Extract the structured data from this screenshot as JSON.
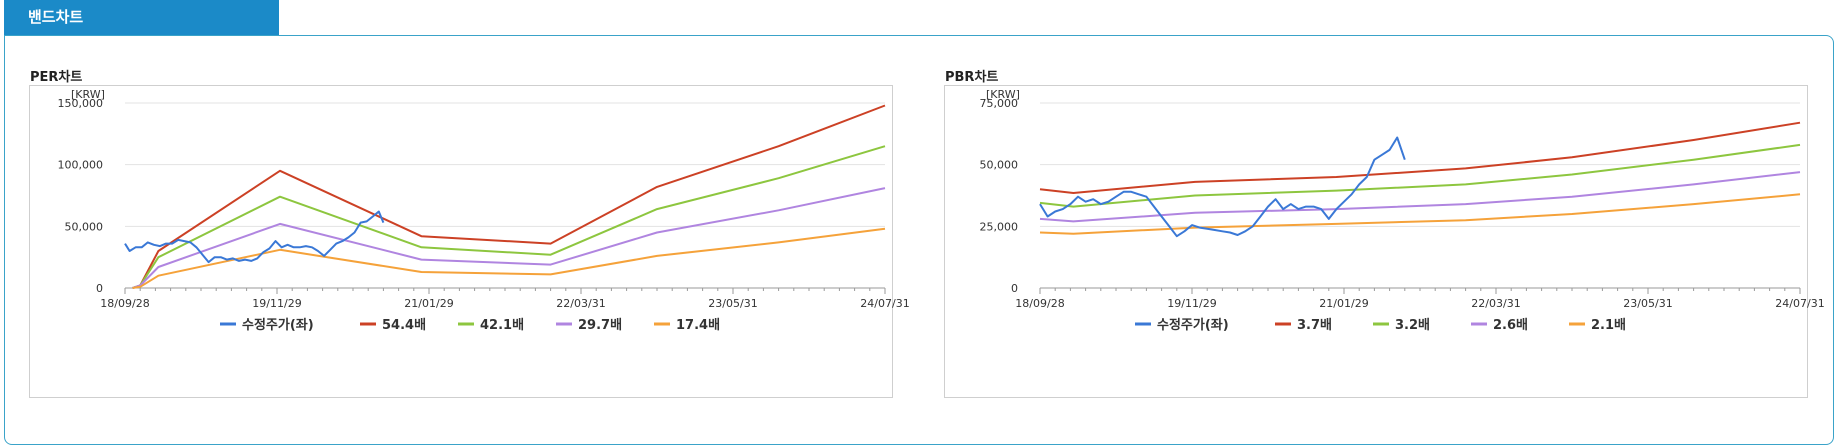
{
  "tab": {
    "label": "밴드차트"
  },
  "charts": [
    {
      "title": "PER차트",
      "chart_data": {
        "type": "line",
        "unit": "[KRW]",
        "x_ticks": [
          "18/09/28",
          "19/11/29",
          "21/01/29",
          "22/03/31",
          "23/05/31",
          "24/07/31"
        ],
        "ylim": [
          0,
          150000
        ],
        "y_ticks": [
          0,
          50000,
          100000,
          150000
        ],
        "y_tick_labels": [
          "0",
          "50,000",
          "100,000",
          "150,000"
        ],
        "grid": true,
        "legend_position": "bottom",
        "series": [
          {
            "name": "수정주가(좌)",
            "color": "#3a78d6",
            "points": [
              [
                0,
                36000
              ],
              [
                0.3,
                30000
              ],
              [
                0.7,
                33000
              ],
              [
                1.1,
                33000
              ],
              [
                1.5,
                37000
              ],
              [
                1.9,
                35000
              ],
              [
                2.3,
                34000
              ],
              [
                2.7,
                36000
              ],
              [
                3.1,
                36000
              ],
              [
                3.5,
                39000
              ],
              [
                3.9,
                38000
              ],
              [
                4.3,
                37000
              ],
              [
                4.7,
                33000
              ],
              [
                5.1,
                27000
              ],
              [
                5.5,
                21000
              ],
              [
                5.9,
                25000
              ],
              [
                6.3,
                25000
              ],
              [
                6.7,
                23000
              ],
              [
                7.1,
                24000
              ],
              [
                7.5,
                22000
              ],
              [
                7.9,
                23000
              ],
              [
                8.3,
                22000
              ],
              [
                8.7,
                24000
              ],
              [
                9.1,
                29000
              ],
              [
                9.5,
                32000
              ],
              [
                9.9,
                38000
              ],
              [
                10.3,
                33000
              ],
              [
                10.7,
                35000
              ],
              [
                11.1,
                33000
              ],
              [
                11.5,
                33000
              ],
              [
                11.9,
                34000
              ],
              [
                12.3,
                33000
              ],
              [
                12.7,
                30000
              ],
              [
                13.1,
                26000
              ],
              [
                13.5,
                31000
              ],
              [
                13.9,
                36000
              ],
              [
                14.3,
                38000
              ],
              [
                14.7,
                41000
              ],
              [
                15.1,
                45000
              ],
              [
                15.5,
                53000
              ],
              [
                15.9,
                54000
              ],
              [
                16.3,
                58000
              ],
              [
                16.7,
                62000
              ],
              [
                17.0,
                53000
              ]
            ]
          },
          {
            "name": "54.4배",
            "color": "#cc4125",
            "points": [
              [
                0.5,
                0
              ],
              [
                1.0,
                2000
              ],
              [
                2.2,
                30000
              ],
              [
                10.2,
                95000
              ],
              [
                19.5,
                42000
              ],
              [
                28.0,
                36000
              ],
              [
                35.0,
                82000
              ],
              [
                43.0,
                115000
              ],
              [
                50.0,
                148000
              ]
            ]
          },
          {
            "name": "42.1배",
            "color": "#8dc63f",
            "points": [
              [
                0.5,
                0
              ],
              [
                1.0,
                2000
              ],
              [
                2.2,
                25000
              ],
              [
                10.2,
                74000
              ],
              [
                19.5,
                33000
              ],
              [
                28.0,
                27000
              ],
              [
                35.0,
                64000
              ],
              [
                43.0,
                89000
              ],
              [
                50.0,
                115000
              ]
            ]
          },
          {
            "name": "29.7배",
            "color": "#b085e0",
            "points": [
              [
                0.5,
                0
              ],
              [
                1.0,
                2000
              ],
              [
                2.2,
                17000
              ],
              [
                10.2,
                52000
              ],
              [
                19.5,
                23000
              ],
              [
                28.0,
                19000
              ],
              [
                35.0,
                45000
              ],
              [
                43.0,
                63000
              ],
              [
                50.0,
                81000
              ]
            ]
          },
          {
            "name": "17.4배",
            "color": "#f5a23a",
            "points": [
              [
                0.5,
                0
              ],
              [
                1.0,
                1000
              ],
              [
                2.2,
                10000
              ],
              [
                10.2,
                31000
              ],
              [
                19.5,
                13000
              ],
              [
                28.0,
                11000
              ],
              [
                35.0,
                26000
              ],
              [
                43.0,
                37000
              ],
              [
                50.0,
                48000
              ]
            ]
          }
        ]
      }
    },
    {
      "title": "PBR차트",
      "chart_data": {
        "type": "line",
        "unit": "[KRW]",
        "x_ticks": [
          "18/09/28",
          "19/11/29",
          "21/01/29",
          "22/03/31",
          "23/05/31",
          "24/07/31"
        ],
        "ylim": [
          0,
          75000
        ],
        "y_ticks": [
          0,
          25000,
          50000,
          75000
        ],
        "y_tick_labels": [
          "0",
          "25,000",
          "50,000",
          "75,000"
        ],
        "grid": true,
        "legend_position": "bottom",
        "series": [
          {
            "name": "수정주가(좌)",
            "color": "#3a78d6",
            "points": [
              [
                0,
                34000
              ],
              [
                0.5,
                29000
              ],
              [
                1.0,
                31000
              ],
              [
                1.5,
                32000
              ],
              [
                2.0,
                34000
              ],
              [
                2.5,
                37000
              ],
              [
                3.0,
                35000
              ],
              [
                3.5,
                36000
              ],
              [
                4.0,
                34000
              ],
              [
                4.5,
                35000
              ],
              [
                5.0,
                37000
              ],
              [
                5.5,
                39000
              ],
              [
                6.0,
                39000
              ],
              [
                6.5,
                38000
              ],
              [
                7.0,
                37000
              ],
              [
                7.5,
                33000
              ],
              [
                8.0,
                29000
              ],
              [
                8.5,
                25000
              ],
              [
                9.0,
                21000
              ],
              [
                9.5,
                23000
              ],
              [
                10.0,
                25500
              ],
              [
                10.5,
                24500
              ],
              [
                11.0,
                24000
              ],
              [
                11.5,
                23500
              ],
              [
                12.0,
                23000
              ],
              [
                12.5,
                22500
              ],
              [
                13.0,
                21500
              ],
              [
                13.5,
                23000
              ],
              [
                14.0,
                25000
              ],
              [
                14.5,
                29000
              ],
              [
                15.0,
                33000
              ],
              [
                15.5,
                36000
              ],
              [
                16.0,
                32000
              ],
              [
                16.5,
                34000
              ],
              [
                17.0,
                32000
              ],
              [
                17.5,
                33000
              ],
              [
                18.0,
                33000
              ],
              [
                18.5,
                32000
              ],
              [
                19.0,
                28000
              ],
              [
                19.5,
                32000
              ],
              [
                20.0,
                35000
              ],
              [
                20.5,
                38000
              ],
              [
                21.0,
                42000
              ],
              [
                21.5,
                45000
              ],
              [
                22.0,
                52000
              ],
              [
                22.5,
                54000
              ],
              [
                23.0,
                56000
              ],
              [
                23.5,
                61000
              ],
              [
                24.0,
                52000
              ]
            ]
          },
          {
            "name": "3.7배",
            "color": "#cc4125",
            "points": [
              [
                0,
                40000
              ],
              [
                2.2,
                38500
              ],
              [
                10.2,
                43000
              ],
              [
                19.5,
                45000
              ],
              [
                28.0,
                48500
              ],
              [
                35.0,
                53000
              ],
              [
                43.0,
                60000
              ],
              [
                50.0,
                67000
              ]
            ]
          },
          {
            "name": "3.2배",
            "color": "#8dc63f",
            "points": [
              [
                0,
                34500
              ],
              [
                2.2,
                33000
              ],
              [
                10.2,
                37500
              ],
              [
                19.5,
                39500
              ],
              [
                28.0,
                42000
              ],
              [
                35.0,
                46000
              ],
              [
                43.0,
                52000
              ],
              [
                50.0,
                58000
              ]
            ]
          },
          {
            "name": "2.6배",
            "color": "#b085e0",
            "points": [
              [
                0,
                28000
              ],
              [
                2.2,
                27000
              ],
              [
                10.2,
                30500
              ],
              [
                19.5,
                32000
              ],
              [
                28.0,
                34000
              ],
              [
                35.0,
                37000
              ],
              [
                43.0,
                42000
              ],
              [
                50.0,
                47000
              ]
            ]
          },
          {
            "name": "2.1배",
            "color": "#f5a23a",
            "points": [
              [
                0,
                22500
              ],
              [
                2.2,
                22000
              ],
              [
                10.2,
                24500
              ],
              [
                19.5,
                26000
              ],
              [
                28.0,
                27500
              ],
              [
                35.0,
                30000
              ],
              [
                43.0,
                34000
              ],
              [
                50.0,
                38000
              ]
            ]
          }
        ]
      }
    }
  ]
}
